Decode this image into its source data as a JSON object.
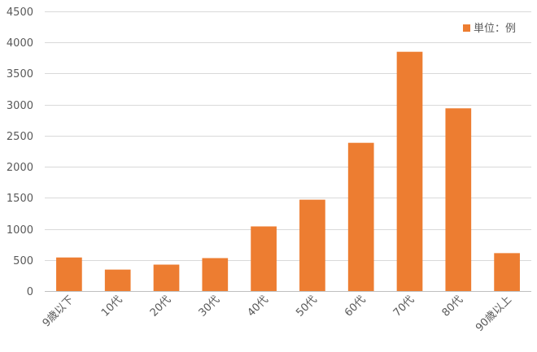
{
  "chart_data": {
    "type": "bar",
    "categories": [
      "9歳以下",
      "10代",
      "20代",
      "30代",
      "40代",
      "50代",
      "60代",
      "70代",
      "80代",
      "90歳以上"
    ],
    "series": [
      {
        "name": "単位：例",
        "values": [
          540,
          345,
          425,
          530,
          1040,
          1470,
          2385,
          3850,
          2940,
          610
        ]
      }
    ],
    "ylim": [
      0,
      4500
    ],
    "yticks": [
      0,
      500,
      1000,
      1500,
      2000,
      2500,
      3000,
      3500,
      4000,
      4500
    ],
    "grid": true,
    "legend_position": "top-right",
    "bar_color": "#ED7D31",
    "xlabel": "",
    "ylabel": "",
    "title": ""
  }
}
